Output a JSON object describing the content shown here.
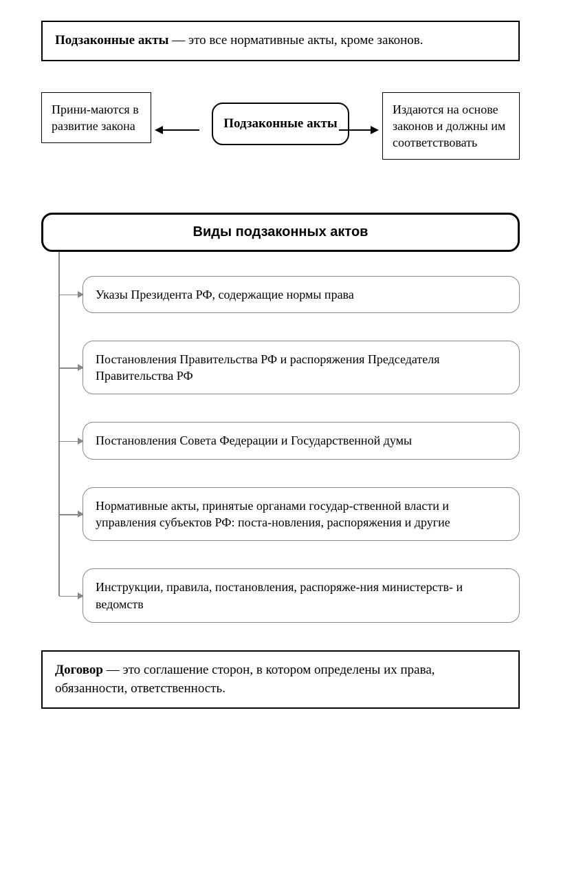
{
  "definition1": {
    "term": "Подзаконные акты",
    "dash": " — ",
    "text": "это все нормативные акты, кроме законов."
  },
  "trio": {
    "left": "Прини-маются в развитие закона",
    "center": "Подзаконные акты",
    "right": "Издаются на основе законов и должны им соответствовать"
  },
  "types_header": "Виды подзаконных актов",
  "types": [
    "Указы Президента РФ, содержащие нормы права",
    "Постановления Правительства РФ и распоряжения Председателя Правительства РФ",
    "Постановления Совета Федерации и Государственной думы",
    "Нормативные акты, принятые органами государ-ственной власти и управления субъектов РФ: поста-новления, распоряжения и другие",
    "Инструкции, правила, постановления, распоряже-ния министерств- и ведомств"
  ],
  "definition2": {
    "term": "Договор",
    "dash": " — ",
    "text": "это соглашение сторон, в котором определены их права, обязанности, ответственность."
  },
  "styling": {
    "border_color_main": "#000000",
    "border_color_list": "#888888",
    "background": "#ffffff",
    "text_color": "#000000",
    "font_main": "Times New Roman",
    "font_header": "Arial",
    "fontsize_body": 18,
    "fontsize_header": 20,
    "radius_rounded": 16,
    "box_border_width": 2,
    "list_border_width": 1.5,
    "item_gap": 40
  }
}
